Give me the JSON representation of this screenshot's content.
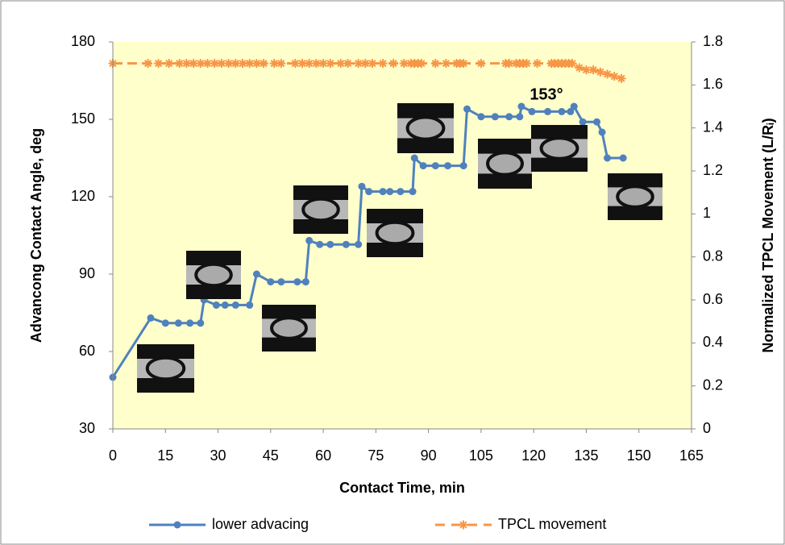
{
  "chart_data": {
    "type": "line",
    "xlabel": "Contact Time, min",
    "ylabel": "Advancong Contact Angle, deg",
    "y2label": "Normalized TPCL Movement (L/Rᵢ)",
    "annotation": "153°",
    "xlim": [
      0,
      165
    ],
    "xticks": [
      0,
      15,
      30,
      45,
      60,
      75,
      90,
      105,
      120,
      135,
      150,
      165
    ],
    "ylim": [
      30,
      180
    ],
    "yticks": [
      30,
      60,
      90,
      120,
      150,
      180
    ],
    "y2lim": [
      0,
      1.8
    ],
    "y2ticks": [
      0,
      0.2,
      0.4,
      0.6,
      0.8,
      1,
      1.2,
      1.4,
      1.6,
      1.8
    ],
    "legend": "bottom",
    "series": [
      {
        "name": "lower advacing",
        "color": "#4f81bd",
        "marker": "circle",
        "x": [
          0,
          10.8,
          15,
          18.7,
          22,
          25,
          26,
          29.5,
          32,
          35,
          39,
          41,
          45,
          48,
          52.6,
          55,
          56,
          59,
          62,
          66.5,
          70,
          71,
          73,
          77,
          79,
          82,
          85.5,
          86,
          88.5,
          92,
          95.5,
          100,
          101,
          105,
          109,
          113,
          116,
          116.5,
          119.5,
          124,
          128,
          130.5,
          131.5,
          134,
          138,
          139.5,
          141,
          145.5
        ],
        "values": [
          50,
          73,
          71,
          71,
          71,
          71,
          80,
          78,
          78,
          78,
          78,
          90,
          87,
          87,
          87,
          87,
          103,
          101.5,
          101.5,
          101.5,
          101.5,
          124,
          122,
          122,
          122,
          122,
          122,
          135,
          132,
          132,
          132,
          132,
          154,
          151,
          151,
          151,
          151,
          155,
          153,
          153,
          153,
          153,
          155,
          149,
          149,
          145,
          135,
          135
        ]
      },
      {
        "name": "TPCL movement",
        "color": "#f79646",
        "marker": "star",
        "axis": "y2",
        "dashed": true,
        "x": [
          0,
          10,
          13,
          16,
          19,
          21,
          23,
          25,
          27,
          29,
          31,
          33,
          35,
          37,
          39,
          41,
          43,
          46,
          48,
          52,
          54,
          56,
          58,
          60,
          62,
          65,
          67,
          70,
          72,
          74,
          77,
          80,
          83,
          85,
          86,
          87,
          88,
          92,
          95,
          98,
          99,
          100,
          105,
          112,
          113,
          115,
          116,
          117,
          118,
          121,
          125,
          126,
          127,
          128,
          129,
          130,
          131,
          133,
          135,
          137,
          139,
          141,
          143,
          145
        ],
        "values": [
          1.7,
          1.7,
          1.7,
          1.7,
          1.7,
          1.7,
          1.7,
          1.7,
          1.7,
          1.7,
          1.7,
          1.7,
          1.7,
          1.7,
          1.7,
          1.7,
          1.7,
          1.7,
          1.7,
          1.7,
          1.7,
          1.7,
          1.7,
          1.7,
          1.7,
          1.7,
          1.7,
          1.7,
          1.7,
          1.7,
          1.7,
          1.7,
          1.7,
          1.7,
          1.7,
          1.7,
          1.7,
          1.7,
          1.7,
          1.7,
          1.7,
          1.7,
          1.7,
          1.7,
          1.7,
          1.7,
          1.7,
          1.7,
          1.7,
          1.7,
          1.7,
          1.7,
          1.7,
          1.7,
          1.7,
          1.7,
          1.7,
          1.68,
          1.67,
          1.67,
          1.66,
          1.65,
          1.64,
          1.63
        ]
      }
    ]
  }
}
